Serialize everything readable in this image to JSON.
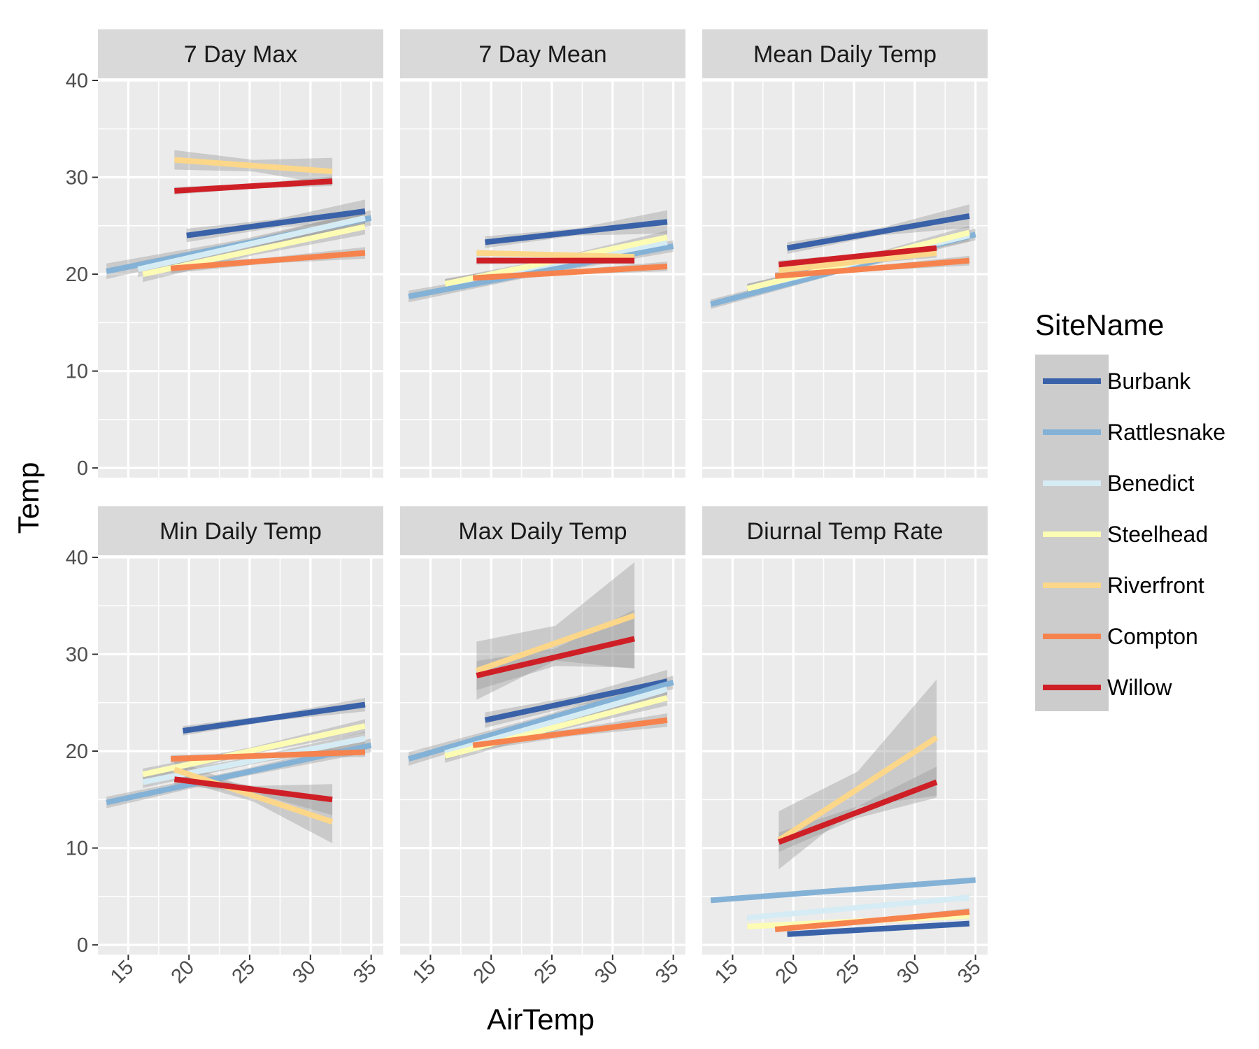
{
  "chart_data": {
    "type": "line",
    "xlabel": "AirTemp",
    "ylabel": "Temp",
    "x_ticks": [
      15,
      20,
      25,
      30,
      35
    ],
    "y_ticks": [
      0,
      10,
      20,
      30,
      40
    ],
    "xlim": [
      12.5,
      36
    ],
    "ylim": [
      -1,
      40
    ],
    "grid": true,
    "legend": {
      "title": "SiteName",
      "position": "right",
      "entries": [
        "Burbank",
        "Rattlesnake",
        "Benedict",
        "Steelhead",
        "Riverfront",
        "Compton",
        "Willow"
      ]
    },
    "colors": {
      "Burbank": "#3a62a8",
      "Rattlesnake": "#84b2d6",
      "Benedict": "#d6ecf4",
      "Steelhead": "#fdfcb4",
      "Riverfront": "#fcd789",
      "Compton": "#f6834d",
      "Willow": "#cf1f26"
    },
    "panels": [
      {
        "title": "7 Day Max",
        "series": [
          {
            "name": "Burbank",
            "x": [
              19.8,
              34.5
            ],
            "y": [
              24.0,
              26.5
            ],
            "band": [
              0.7,
              1.2
            ]
          },
          {
            "name": "Rattlesnake",
            "x": [
              13.2,
              35.0
            ],
            "y": [
              20.3,
              25.8
            ],
            "band": [
              0.8,
              0.8
            ]
          },
          {
            "name": "Benedict",
            "x": [
              15.8,
              34.5
            ],
            "y": [
              20.5,
              25.8
            ],
            "band": [
              0.8,
              0.8
            ]
          },
          {
            "name": "Steelhead",
            "x": [
              16.2,
              34.5
            ],
            "y": [
              20.0,
              24.9
            ],
            "band": [
              0.8,
              0.8
            ]
          },
          {
            "name": "Riverfront",
            "x": [
              18.8,
              31.8
            ],
            "y": [
              31.8,
              30.6
            ],
            "band": [
              1.0,
              1.4
            ]
          },
          {
            "name": "Compton",
            "x": [
              18.5,
              34.5
            ],
            "y": [
              20.6,
              22.2
            ],
            "band": [
              0.5,
              0.6
            ]
          },
          {
            "name": "Willow",
            "x": [
              18.8,
              31.8
            ],
            "y": [
              28.6,
              29.6
            ],
            "band": [
              0.4,
              0.5
            ]
          }
        ]
      },
      {
        "title": "7 Day Mean",
        "series": [
          {
            "name": "Burbank",
            "x": [
              19.5,
              34.5
            ],
            "y": [
              23.3,
              25.4
            ],
            "band": [
              0.6,
              1.2
            ]
          },
          {
            "name": "Rattlesnake",
            "x": [
              13.2,
              35.0
            ],
            "y": [
              17.7,
              22.9
            ],
            "band": [
              0.6,
              0.6
            ]
          },
          {
            "name": "Benedict",
            "x": [
              16.2,
              34.5
            ],
            "y": [
              19.0,
              23.3
            ],
            "band": [
              0.5,
              0.5
            ]
          },
          {
            "name": "Steelhead",
            "x": [
              16.2,
              34.5
            ],
            "y": [
              19.0,
              23.8
            ],
            "band": [
              0.5,
              0.7
            ]
          },
          {
            "name": "Riverfront",
            "x": [
              18.8,
              31.8
            ],
            "y": [
              22.2,
              21.8
            ],
            "band": [
              0.3,
              0.4
            ]
          },
          {
            "name": "Compton",
            "x": [
              18.5,
              34.5
            ],
            "y": [
              19.6,
              20.8
            ],
            "band": [
              0.4,
              0.5
            ]
          },
          {
            "name": "Willow",
            "x": [
              18.8,
              31.8
            ],
            "y": [
              21.4,
              21.4
            ],
            "band": [
              0.4,
              0.4
            ]
          }
        ]
      },
      {
        "title": "Mean Daily Temp",
        "series": [
          {
            "name": "Burbank",
            "x": [
              19.5,
              34.5
            ],
            "y": [
              22.7,
              26.0
            ],
            "band": [
              0.6,
              1.2
            ]
          },
          {
            "name": "Rattlesnake",
            "x": [
              13.2,
              35.0
            ],
            "y": [
              16.9,
              24.1
            ],
            "band": [
              0.5,
              0.6
            ]
          },
          {
            "name": "Benedict",
            "x": [
              16.2,
              34.5
            ],
            "y": [
              18.5,
              24.0
            ],
            "band": [
              0.5,
              0.6
            ]
          },
          {
            "name": "Steelhead",
            "x": [
              16.2,
              34.5
            ],
            "y": [
              18.5,
              24.3
            ],
            "band": [
              0.5,
              0.7
            ]
          },
          {
            "name": "Riverfront",
            "x": [
              18.8,
              31.8
            ],
            "y": [
              20.4,
              22.2
            ],
            "band": [
              0.4,
              0.5
            ]
          },
          {
            "name": "Compton",
            "x": [
              18.5,
              34.5
            ],
            "y": [
              19.8,
              21.4
            ],
            "band": [
              0.4,
              0.5
            ]
          },
          {
            "name": "Willow",
            "x": [
              18.8,
              31.8
            ],
            "y": [
              21.0,
              22.7
            ],
            "band": [
              0.4,
              0.5
            ]
          }
        ]
      },
      {
        "title": "Min Daily Temp",
        "series": [
          {
            "name": "Burbank",
            "x": [
              19.5,
              34.5
            ],
            "y": [
              22.1,
              24.8
            ],
            "band": [
              0.5,
              0.7
            ]
          },
          {
            "name": "Rattlesnake",
            "x": [
              13.2,
              35.0
            ],
            "y": [
              14.7,
              20.6
            ],
            "band": [
              0.6,
              0.7
            ]
          },
          {
            "name": "Benedict",
            "x": [
              16.2,
              34.5
            ],
            "y": [
              16.8,
              21.3
            ],
            "band": [
              0.6,
              0.7
            ]
          },
          {
            "name": "Steelhead",
            "x": [
              16.2,
              34.5
            ],
            "y": [
              17.6,
              22.6
            ],
            "band": [
              0.6,
              0.7
            ]
          },
          {
            "name": "Riverfront",
            "x": [
              18.8,
              31.8
            ],
            "y": [
              18.1,
              12.7
            ],
            "band": [
              1.0,
              2.2
            ]
          },
          {
            "name": "Compton",
            "x": [
              18.5,
              34.5
            ],
            "y": [
              19.2,
              19.9
            ],
            "band": [
              0.4,
              0.5
            ]
          },
          {
            "name": "Willow",
            "x": [
              18.8,
              31.8
            ],
            "y": [
              17.1,
              15.0
            ],
            "band": [
              0.6,
              1.6
            ]
          }
        ]
      },
      {
        "title": "Max Daily Temp",
        "series": [
          {
            "name": "Burbank",
            "x": [
              19.5,
              34.5
            ],
            "y": [
              23.2,
              27.2
            ],
            "band": [
              0.8,
              1.2
            ]
          },
          {
            "name": "Rattlesnake",
            "x": [
              13.2,
              35.0
            ],
            "y": [
              19.2,
              27.1
            ],
            "band": [
              0.7,
              0.7
            ]
          },
          {
            "name": "Benedict",
            "x": [
              16.2,
              34.5
            ],
            "y": [
              19.8,
              26.4
            ],
            "band": [
              0.7,
              0.8
            ]
          },
          {
            "name": "Steelhead",
            "x": [
              16.2,
              34.5
            ],
            "y": [
              19.5,
              25.5
            ],
            "band": [
              0.7,
              0.8
            ]
          },
          {
            "name": "Riverfront",
            "x": [
              18.8,
              31.8
            ],
            "y": [
              28.3,
              34.0
            ],
            "band": [
              3.0,
              5.5
            ]
          },
          {
            "name": "Compton",
            "x": [
              18.5,
              34.5
            ],
            "y": [
              20.6,
              23.2
            ],
            "band": [
              0.6,
              0.7
            ]
          },
          {
            "name": "Willow",
            "x": [
              18.8,
              31.8
            ],
            "y": [
              27.8,
              31.6
            ],
            "band": [
              1.5,
              3.0
            ]
          }
        ]
      },
      {
        "title": "Diurnal Temp Rate",
        "series": [
          {
            "name": "Burbank",
            "x": [
              19.5,
              34.5
            ],
            "y": [
              1.1,
              2.2
            ],
            "band": [
              0.2,
              0.3
            ]
          },
          {
            "name": "Rattlesnake",
            "x": [
              13.2,
              35.0
            ],
            "y": [
              4.6,
              6.7
            ],
            "band": [
              0.2,
              0.3
            ]
          },
          {
            "name": "Benedict",
            "x": [
              16.2,
              34.5
            ],
            "y": [
              2.8,
              4.9
            ],
            "band": [
              0.2,
              0.3
            ]
          },
          {
            "name": "Steelhead",
            "x": [
              16.2,
              34.5
            ],
            "y": [
              1.9,
              3.0
            ],
            "band": [
              0.2,
              0.3
            ]
          },
          {
            "name": "Riverfront",
            "x": [
              18.8,
              31.8
            ],
            "y": [
              10.8,
              21.4
            ],
            "band": [
              3.0,
              6.0
            ]
          },
          {
            "name": "Compton",
            "x": [
              18.5,
              34.5
            ],
            "y": [
              1.6,
              3.4
            ],
            "band": [
              0.3,
              0.4
            ]
          },
          {
            "name": "Willow",
            "x": [
              18.8,
              31.8
            ],
            "y": [
              10.6,
              16.8
            ],
            "band": [
              1.0,
              1.6
            ]
          }
        ]
      }
    ]
  }
}
